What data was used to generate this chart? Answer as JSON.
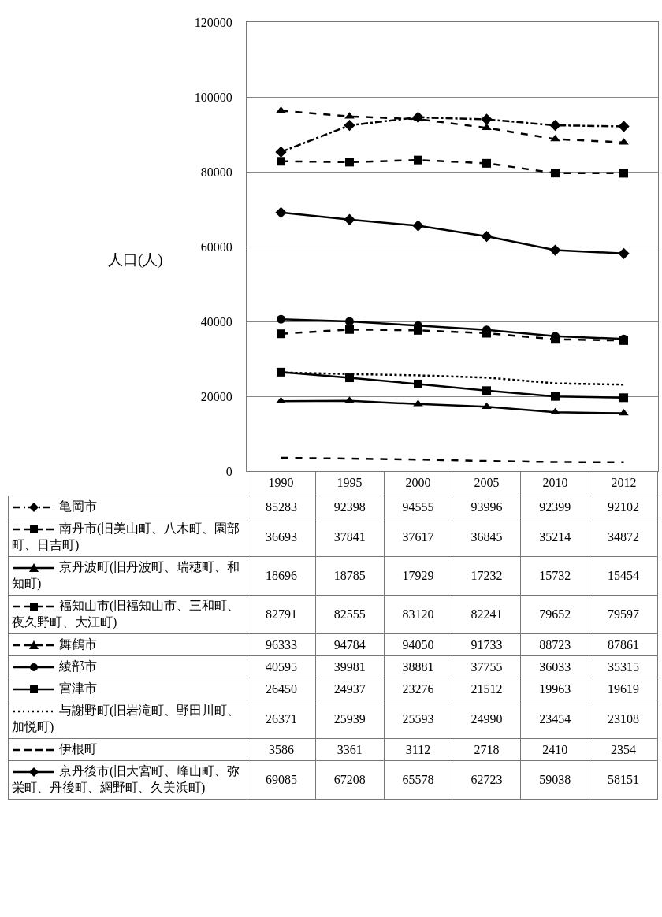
{
  "chart_data": {
    "type": "line",
    "ylabel": "人口(人)",
    "categories": [
      "1990",
      "1995",
      "2000",
      "2005",
      "2010",
      "2012"
    ],
    "ylim": [
      0,
      120000
    ],
    "yticks": [
      0,
      20000,
      40000,
      60000,
      80000,
      100000,
      120000
    ],
    "grid": "y",
    "legend": "bottom",
    "data_labels": true,
    "series": [
      {
        "name": "亀岡市",
        "color": "#000000",
        "marker": "diamond",
        "line_style": "dashdot",
        "values": [
          85283,
          92398,
          94555,
          93996,
          92399,
          92102
        ]
      },
      {
        "name": "南丹市(旧美山町、八木町、園部町、日吉町)",
        "color": "#000000",
        "marker": "square",
        "line_style": "dashed",
        "values": [
          36693,
          37841,
          37617,
          36845,
          35214,
          34872
        ]
      },
      {
        "name": "京丹波町(旧丹波町、瑞穂町、和知町)",
        "color": "#000000",
        "marker": "triangle",
        "line_style": "solid",
        "values": [
          18696,
          18785,
          17929,
          17232,
          15732,
          15454
        ]
      },
      {
        "name": "福知山市(旧福知山市、三和町、夜久野町、大江町)",
        "color": "#000000",
        "marker": "square",
        "line_style": "dashed",
        "values": [
          82791,
          82555,
          83120,
          82241,
          79652,
          79597
        ]
      },
      {
        "name": "舞鶴市",
        "color": "#000000",
        "marker": "triangle",
        "line_style": "dashed",
        "values": [
          96333,
          94784,
          94050,
          91733,
          88723,
          87861
        ]
      },
      {
        "name": "綾部市",
        "color": "#000000",
        "marker": "circle",
        "line_style": "solid",
        "values": [
          40595,
          39981,
          38881,
          37755,
          36033,
          35315
        ]
      },
      {
        "name": "宮津市",
        "color": "#000000",
        "marker": "square",
        "line_style": "solid",
        "values": [
          26450,
          24937,
          23276,
          21512,
          19963,
          19619
        ]
      },
      {
        "name": "与謝野町(旧岩滝町、野田川町、加悦町)",
        "color": "#000000",
        "marker": "none",
        "line_style": "dotted",
        "values": [
          26371,
          25939,
          25593,
          24990,
          23454,
          23108
        ]
      },
      {
        "name": "伊根町",
        "color": "#000000",
        "marker": "none",
        "line_style": "dashed",
        "values": [
          3586,
          3361,
          3112,
          2718,
          2410,
          2354
        ]
      },
      {
        "name": "京丹後市(旧大宮町、峰山町、弥栄町、丹後町、網野町、久美浜町)",
        "color": "#000000",
        "marker": "diamond",
        "line_style": "solid",
        "values": [
          69085,
          67208,
          65578,
          62723,
          59038,
          58151
        ]
      }
    ]
  }
}
